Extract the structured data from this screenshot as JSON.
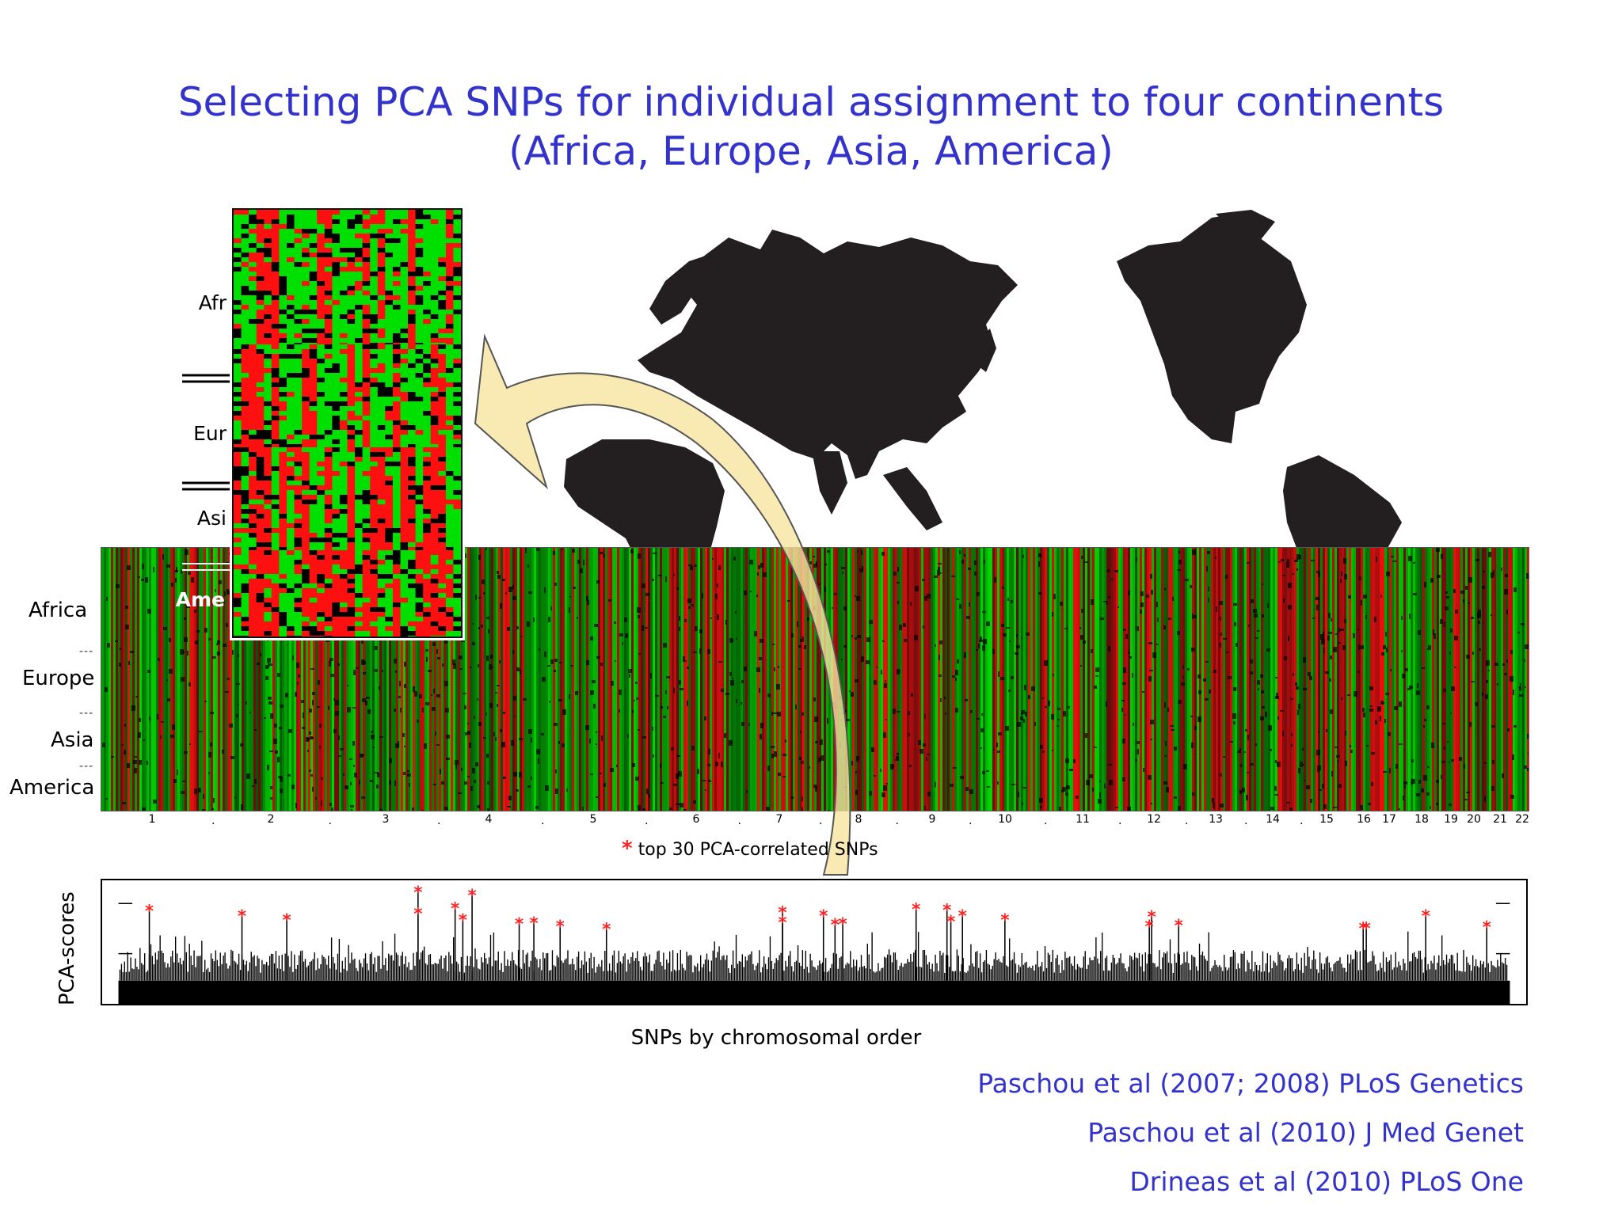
{
  "title": {
    "line1": "Selecting PCA SNPs for individual assignment to four continents",
    "line2": "(Africa, Europe, Asia, America)"
  },
  "heatmap": {
    "row_labels": [
      "Africa",
      "Europe",
      "Asia",
      "America"
    ],
    "separator": "---",
    "colors": {
      "green": "#00e000",
      "red": "#ff1010",
      "black": "#000000"
    }
  },
  "inset": {
    "row_labels": [
      "Afr",
      "Eur",
      "Asi",
      "Ame"
    ]
  },
  "chromosomes": [
    "1",
    "2",
    "3",
    "4",
    "5",
    "6",
    "7",
    "8",
    "9",
    "10",
    "11",
    "12",
    "13",
    "14",
    "15",
    "16",
    "17",
    "18",
    "19",
    "20",
    "21",
    "22"
  ],
  "legend": {
    "star": "*",
    "text": "top 30 PCA-correlated SNPs",
    "star_color": "#ff2020"
  },
  "pca_plot": {
    "ylabel": "PCA-scores",
    "xlabel": "SNPs by chromosomal order"
  },
  "references": [
    "Paschou et al (2007; 2008) PLoS Genetics",
    "Paschou et al (2010) J Med Genet",
    "Drineas et al (2010) PLoS One"
  ],
  "colors": {
    "title": "#3333cc",
    "map": "#231f20",
    "arrow_fill": "#f7e3a0",
    "arrow_stroke": "#555555"
  }
}
